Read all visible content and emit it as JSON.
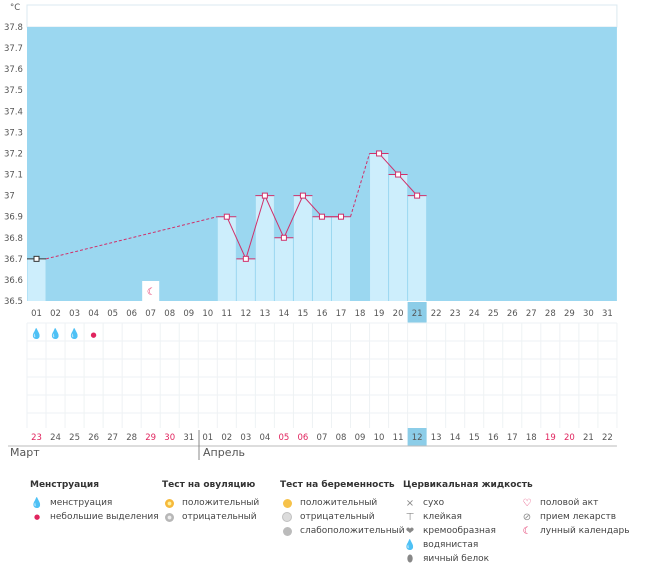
{
  "chart_data": {
    "type": "bar",
    "unit": "°C",
    "y_axis": {
      "labels": [
        "37.8",
        "37.7",
        "37.6",
        "37.5",
        "37.4",
        "37.3",
        "37.2",
        "37.1",
        "37",
        "36.9",
        "36.8",
        "36.7",
        "36.6",
        "36.5"
      ],
      "min": 36.5,
      "max": 37.8
    },
    "top_days": [
      "01",
      "02",
      "03",
      "04",
      "05",
      "06",
      "07",
      "08",
      "09",
      "10",
      "11",
      "12",
      "13",
      "14",
      "15",
      "16",
      "17",
      "18",
      "19",
      "20",
      "21",
      "22",
      "23",
      "24",
      "25",
      "26",
      "27",
      "28",
      "29",
      "30",
      "31"
    ],
    "highlight_index": 20,
    "temperatures": [
      {
        "i": 0,
        "v": 36.7
      },
      {
        "i": 10,
        "v": 36.9
      },
      {
        "i": 11,
        "v": 36.7
      },
      {
        "i": 12,
        "v": 37.0
      },
      {
        "i": 13,
        "v": 36.8
      },
      {
        "i": 14,
        "v": 37.0
      },
      {
        "i": 15,
        "v": 36.9
      },
      {
        "i": 16,
        "v": 36.9
      },
      {
        "i": 18,
        "v": 37.2
      },
      {
        "i": 19,
        "v": 37.1
      },
      {
        "i": 20,
        "v": 37.0
      }
    ],
    "dashed_segments": [
      [
        0,
        10
      ],
      [
        16,
        18
      ]
    ],
    "moon_day_index": 6,
    "period_marks": [
      {
        "i": 0,
        "type": "menstruation"
      },
      {
        "i": 1,
        "type": "menstruation"
      },
      {
        "i": 2,
        "type": "menstruation"
      },
      {
        "i": 3,
        "type": "spotting"
      }
    ],
    "bottom_days": [
      "23",
      "24",
      "25",
      "26",
      "27",
      "28",
      "29",
      "30",
      "31",
      "01",
      "02",
      "03",
      "04",
      "05",
      "06",
      "07",
      "08",
      "09",
      "10",
      "11",
      "12",
      "13",
      "14",
      "15",
      "16",
      "17",
      "18",
      "19",
      "20",
      "21",
      "22"
    ],
    "bottom_red_indices": [
      0,
      6,
      7,
      13,
      14,
      27,
      28
    ],
    "months": [
      "Март",
      "Апрель"
    ]
  },
  "colors": {
    "zone": "#9bd7f0",
    "bar": "#cdeefc",
    "line": "#d0306a",
    "highlight": "#8ccde8"
  },
  "legend": {
    "menstruation": {
      "title": "Менструация",
      "items": [
        "менструация",
        "небольшие выделения"
      ]
    },
    "ovulation": {
      "title": "Тест на овуляцию",
      "items": [
        "положительный",
        "отрицательный"
      ]
    },
    "pregnancy": {
      "title": "Тест на беременность",
      "items": [
        "положительный",
        "отрицательный",
        "слабоположительный"
      ]
    },
    "cervical": {
      "title": "Цервикальная жидкость",
      "items": [
        "сухо",
        "клейкая",
        "кремообразная",
        "водянистая",
        "яичный белок"
      ]
    },
    "other": {
      "items": [
        "половой акт",
        "прием лекарств",
        "лунный календарь"
      ]
    }
  }
}
